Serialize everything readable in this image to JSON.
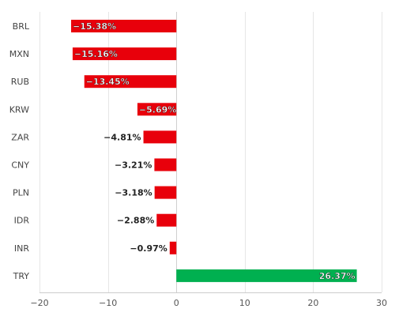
{
  "chart_data": {
    "type": "bar",
    "orientation": "horizontal",
    "categories": [
      "BRL",
      "MXN",
      "RUB",
      "KRW",
      "ZAR",
      "CNY",
      "PLN",
      "IDR",
      "INR",
      "TRY"
    ],
    "values": [
      -15.38,
      -15.16,
      -13.45,
      -5.69,
      -4.81,
      -3.21,
      -3.18,
      -2.88,
      -0.97,
      26.37
    ],
    "data_labels": [
      "−15.38%",
      "−15.16%",
      "−13.45%",
      "−5.69%",
      "−4.81%",
      "−3.21%",
      "−3.18%",
      "−2.88%",
      "−0.97%",
      "26.37%"
    ],
    "x_ticks": [
      -20,
      -10,
      0,
      10,
      20,
      30
    ],
    "x_tick_labels": [
      "−20",
      "−10",
      "0",
      "10",
      "20",
      "30"
    ],
    "xlim": [
      -20,
      30
    ],
    "title": "",
    "xlabel": "",
    "ylabel": "",
    "grid": true,
    "legend": false,
    "colors": {
      "negative": "#e8000b",
      "positive": "#00b050",
      "grid": "#e6e6e6",
      "label_outside": "#222222",
      "label_inside": "#ffffff"
    }
  }
}
